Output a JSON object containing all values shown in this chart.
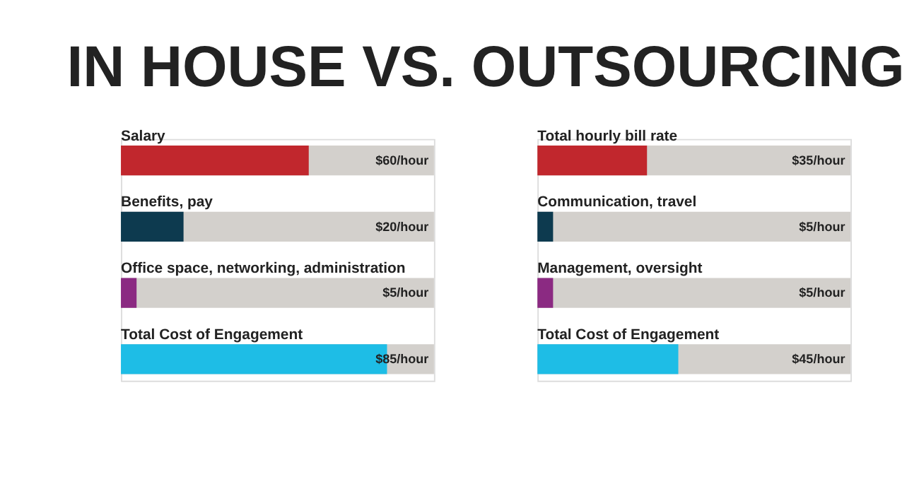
{
  "chart_data": [
    {
      "type": "bar",
      "title": "IN HOUSE VS. OUTSOURCING",
      "orientation": "horizontal",
      "categories": [
        "Salary",
        "Benefits, pay",
        "Office space, networking, administration",
        "Total Cost of Engagement"
      ],
      "values": [
        60,
        20,
        5,
        85
      ],
      "colors": [
        "#c1272d",
        "#0d3a4f",
        "#8b2a82",
        "#1ebde6"
      ],
      "value_labels": [
        "$60/hour",
        "$20/hour",
        "$5/hour",
        "$85/hour"
      ],
      "xlim": [
        0,
        100
      ],
      "tick_labels": false,
      "legend": false,
      "grid": false
    },
    {
      "type": "bar",
      "orientation": "horizontal",
      "categories": [
        "Total hourly bill rate",
        "Communication, travel",
        "Management, oversight",
        "Total Cost of Engagement"
      ],
      "values": [
        35,
        5,
        5,
        45
      ],
      "colors": [
        "#c1272d",
        "#0d3a4f",
        "#8b2a82",
        "#1ebde6"
      ],
      "value_labels": [
        "$35/hour",
        "$5/hour",
        "$5/hour",
        "$45/hour"
      ],
      "xlim": [
        0,
        100
      ],
      "tick_labels": false,
      "legend": false,
      "grid": false
    }
  ]
}
